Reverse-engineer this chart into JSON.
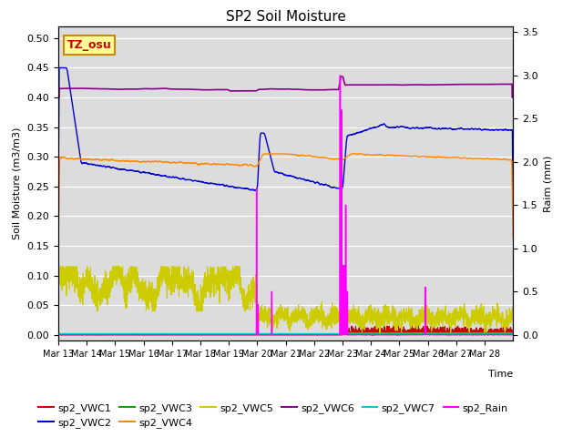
{
  "title": "SP2 Soil Moisture",
  "ylabel_left": "Soil Moisture (m3/m3)",
  "ylabel_right": "Raim (mm)",
  "xlabel": "Time",
  "ylim_left": [
    -0.01,
    0.52
  ],
  "ylim_right": [
    -0.07,
    3.57
  ],
  "xlim": [
    0,
    16
  ],
  "xtick_labels": [
    "Mar 13",
    "Mar 14",
    "Mar 15",
    "Mar 16",
    "Mar 17",
    "Mar 18",
    "Mar 19",
    "Mar 20",
    "Mar 21",
    "Mar 22",
    "Mar 23",
    "Mar 24",
    "Mar 25",
    "Mar 26",
    "Mar 27",
    "Mar 28"
  ],
  "bg_color": "#dcdcdc",
  "annotation_text": "TZ_osu",
  "annotation_bg": "#ffff99",
  "annotation_border": "#cc8800",
  "series_colors": {
    "sp2_VWC1": "#cc0000",
    "sp2_VWC2": "#0000cc",
    "sp2_VWC3": "#00aa00",
    "sp2_VWC4": "#ff8800",
    "sp2_VWC5": "#cccc00",
    "sp2_VWC6": "#880088",
    "sp2_VWC7": "#00cccc",
    "sp2_Rain": "#ff00ff"
  },
  "legend_entries": [
    "sp2_VWC1",
    "sp2_VWC2",
    "sp2_VWC3",
    "sp2_VWC4",
    "sp2_VWC5",
    "sp2_VWC6",
    "sp2_VWC7",
    "sp2_Rain"
  ]
}
